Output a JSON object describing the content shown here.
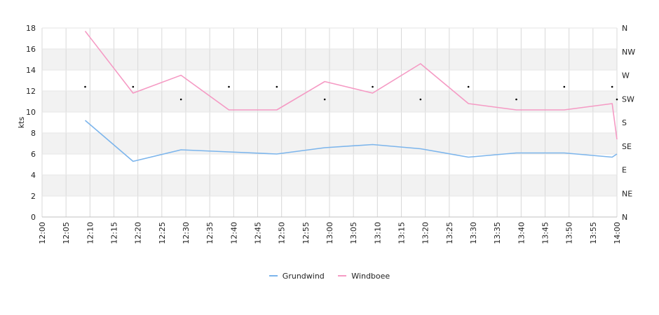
{
  "chart_data": {
    "type": "line",
    "ylabel": "kts",
    "ylim": [
      0,
      18
    ],
    "yticks": [
      "0",
      "2",
      "4",
      "6",
      "8",
      "10",
      "12",
      "14",
      "16",
      "18"
    ],
    "xticks": [
      "12:00",
      "12:05",
      "12:10",
      "12:15",
      "12:20",
      "12:25",
      "12:30",
      "12:35",
      "12:40",
      "12:45",
      "12:50",
      "12:55",
      "13:00",
      "13:05",
      "13:10",
      "13:15",
      "13:20",
      "13:25",
      "13:30",
      "13:35",
      "13:40",
      "13:45",
      "13:50",
      "13:55",
      "14:00"
    ],
    "y2ticks": [
      "N",
      "NE",
      "E",
      "SE",
      "S",
      "SW",
      "W",
      "NW",
      "N"
    ],
    "x": [
      "12:09",
      "12:19",
      "12:29",
      "12:39",
      "12:49",
      "12:59",
      "13:09",
      "13:19",
      "13:29",
      "13:39",
      "13:49",
      "13:59",
      "14:00"
    ],
    "series": [
      {
        "name": "Grundwind",
        "color": "#7cb5ec",
        "values": [
          9.2,
          5.3,
          6.4,
          6.2,
          6.0,
          6.6,
          6.9,
          6.5,
          5.7,
          6.1,
          6.1,
          5.7,
          6.0
        ]
      },
      {
        "name": "Windboee",
        "color": "#f59ac4",
        "values": [
          17.7,
          11.8,
          13.5,
          10.2,
          10.2,
          12.9,
          11.8,
          14.6,
          10.8,
          10.2,
          10.2,
          10.8,
          7.4
        ]
      }
    ],
    "direction": {
      "x": [
        "12:09",
        "12:19",
        "12:29",
        "12:39",
        "12:49",
        "12:59",
        "13:09",
        "13:19",
        "13:29",
        "13:39",
        "13:49",
        "13:59",
        "14:00"
      ],
      "values": [
        12.4,
        12.4,
        11.2,
        12.4,
        12.4,
        11.2,
        12.4,
        11.2,
        12.4,
        11.2,
        12.4,
        12.4,
        11.2
      ]
    },
    "grid": true,
    "legend": "bottom-center"
  }
}
